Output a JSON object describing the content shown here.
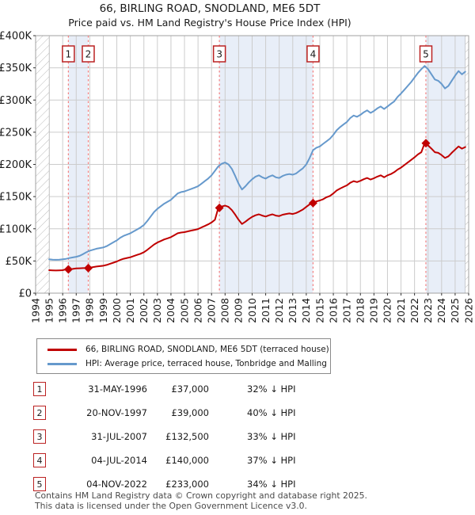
{
  "header": {
    "title": "66, BIRLING ROAD, SNODLAND, ME6 5DT",
    "subtitle": "Price paid vs. HM Land Registry's House Price Index (HPI)"
  },
  "legend": {
    "property": "66, BIRLING ROAD, SNODLAND, ME6 5DT (terraced house)",
    "hpi": "HPI: Average price, terraced house, Tonbridge and Malling"
  },
  "colors": {
    "property_line": "#c00000",
    "hpi_line": "#6699cc",
    "sale_dash": "#f47f7f",
    "band": "#e8eef8",
    "grid": "#cccccc",
    "grid_dark": "#999999",
    "plot_border": "#a0a0a0",
    "hatch": "#bbbbbb",
    "badge_border": "#bb2222"
  },
  "chart_data": {
    "type": "line",
    "title": "66, BIRLING ROAD, SNODLAND, ME6 5DT",
    "subtitle": "Price paid vs. HM Land Registry's House Price Index (HPI)",
    "x_axis": {
      "min": 1994,
      "max": 2026,
      "tick_years": [
        1994,
        1995,
        1996,
        1997,
        1998,
        1999,
        2000,
        2001,
        2002,
        2003,
        2004,
        2005,
        2006,
        2007,
        2008,
        2009,
        2010,
        2011,
        2012,
        2013,
        2014,
        2015,
        2016,
        2017,
        2018,
        2019,
        2020,
        2021,
        2022,
        2023,
        2024,
        2025,
        2026
      ]
    },
    "y_axis": {
      "min": 0,
      "max": 400,
      "tick_values": [
        0,
        50,
        100,
        150,
        200,
        250,
        300,
        350,
        400
      ],
      "tick_labels": [
        "£0",
        "£50K",
        "£100K",
        "£150K",
        "£200K",
        "£250K",
        "£300K",
        "£350K",
        "£400K"
      ]
    },
    "values_unit": "thousands GBP",
    "series": [
      {
        "name": "66, BIRLING ROAD, SNODLAND, ME6 5DT (terraced house)",
        "color": "#c00000",
        "x_start": 1995,
        "x_step": 0.25,
        "values": [
          35.7,
          35.4,
          35.2,
          35.4,
          35.7,
          37,
          37.1,
          37.7,
          38.4,
          38.6,
          38.9,
          39,
          39.6,
          40.5,
          41.4,
          42,
          42.6,
          43.8,
          45.6,
          47.4,
          49.2,
          51.6,
          53.4,
          54.6,
          55.8,
          57.6,
          59.4,
          61.2,
          63.6,
          67.2,
          71.4,
          75.6,
          78.6,
          81,
          83.4,
          85.2,
          87,
          90,
          93,
          94.2,
          94.8,
          96,
          97.2,
          98.4,
          99.6,
          102,
          104.4,
          106.8,
          109.8,
          114,
          132.5,
          134.5,
          136,
          134,
          129,
          122,
          114,
          107.5,
          111,
          115,
          118.5,
          121,
          122.5,
          120.5,
          119,
          121,
          122.5,
          120.5,
          119.8,
          121.8,
          123,
          123.8,
          123,
          124.5,
          127,
          130,
          134,
          138,
          140,
          142.5,
          144,
          146,
          149,
          151,
          155,
          159.5,
          162.5,
          165,
          167.5,
          171.5,
          174,
          172.5,
          174.5,
          177,
          179,
          176.5,
          178.5,
          181,
          183,
          180,
          183,
          185,
          188,
          192,
          195,
          199,
          203,
          207,
          211,
          215.5,
          219,
          233,
          229.5,
          224.5,
          219,
          218,
          214.5,
          210,
          212.5,
          218,
          223,
          228,
          224.5,
          227
        ]
      },
      {
        "name": "HPI: Average price, terraced house, Tonbridge and Malling",
        "color": "#6699cc",
        "x_start": 1995,
        "x_step": 0.25,
        "values": [
          52.5,
          52,
          51.8,
          52,
          52.5,
          53.3,
          54.5,
          55.5,
          56.5,
          58,
          60.5,
          63.5,
          66,
          67.5,
          69,
          70,
          71,
          73,
          76,
          79,
          82,
          86,
          89,
          91,
          93,
          96,
          99,
          102,
          106,
          112,
          119,
          126,
          131,
          135,
          139,
          142,
          145,
          150,
          155,
          157,
          158,
          160,
          162,
          164,
          166,
          170,
          174,
          178,
          183,
          190,
          197,
          201,
          203,
          200,
          193,
          182,
          170,
          161,
          166,
          172,
          177,
          181,
          183,
          180,
          178,
          181,
          183,
          180,
          179,
          182,
          184,
          185,
          184,
          186,
          190,
          194,
          200,
          210,
          222,
          226,
          228,
          232,
          236,
          240,
          246,
          253,
          258,
          262,
          266,
          272,
          276,
          274,
          277,
          281,
          284,
          280,
          283,
          287,
          290,
          286,
          290,
          294,
          298,
          305,
          310,
          316,
          322,
          328,
          335,
          342,
          348,
          353,
          348,
          340,
          332,
          330,
          325,
          318,
          322,
          330,
          338,
          345,
          340,
          344
        ]
      }
    ],
    "sales": [
      {
        "num": "1",
        "x": 1996.42,
        "value": 37
      },
      {
        "num": "2",
        "x": 1997.89,
        "value": 39
      },
      {
        "num": "3",
        "x": 2007.58,
        "value": 132.5
      },
      {
        "num": "4",
        "x": 2014.5,
        "value": 140
      },
      {
        "num": "5",
        "x": 2022.84,
        "value": 233
      }
    ],
    "bands": [
      [
        1996.42,
        1997.89
      ],
      [
        2007.58,
        2014.5
      ],
      [
        2022.84,
        2026
      ]
    ],
    "hatch_regions": [
      [
        1994,
        1995
      ],
      [
        2025.75,
        2026
      ]
    ],
    "legend_position": "below",
    "grid": true
  },
  "table": {
    "rows": [
      {
        "num": "1",
        "date": "31-MAY-1996",
        "price": "£37,000",
        "hpi_diff": "32% ↓ HPI"
      },
      {
        "num": "2",
        "date": "20-NOV-1997",
        "price": "£39,000",
        "hpi_diff": "40% ↓ HPI"
      },
      {
        "num": "3",
        "date": "31-JUL-2007",
        "price": "£132,500",
        "hpi_diff": "33% ↓ HPI"
      },
      {
        "num": "4",
        "date": "04-JUL-2014",
        "price": "£140,000",
        "hpi_diff": "37% ↓ HPI"
      },
      {
        "num": "5",
        "date": "04-NOV-2022",
        "price": "£233,000",
        "hpi_diff": "34% ↓ HPI"
      }
    ]
  },
  "footer": {
    "line1": "Contains HM Land Registry data © Crown copyright and database right 2025.",
    "line2": "This data is licensed under the Open Government Licence v3.0."
  }
}
